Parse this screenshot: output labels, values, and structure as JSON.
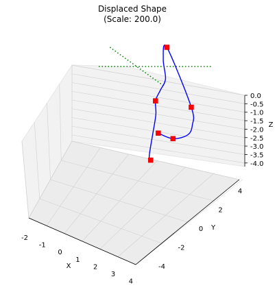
{
  "chart_data": {
    "type": "line",
    "projection": "3d",
    "title": "Displaced Shape",
    "subtitle": "(Scale: 200.0)",
    "xlabel": "X",
    "ylabel": "Y",
    "zlabel": "Z",
    "xlim": [
      -2.2,
      4.2
    ],
    "ylim": [
      -4.2,
      4.2
    ],
    "zlim": [
      -4.2,
      0.1
    ],
    "grid": true,
    "xticks": [
      "-2",
      "-1",
      "0",
      "1",
      "2",
      "3",
      "4"
    ],
    "yticks": [
      "-4",
      "-2",
      "0",
      "2",
      "4"
    ],
    "zticks": [
      "0.0",
      "-0.5",
      "-1.0",
      "-1.5",
      "-2.0",
      "-2.5",
      "-3.0",
      "-3.5",
      "-4.0"
    ],
    "colors": {
      "curve": "#0000ff",
      "nodes": "#ff0000",
      "reference": "#008000",
      "pane": "#f2f2f2",
      "grid": "#d0d0d0"
    },
    "series": [
      {
        "kind": "reference-lines",
        "style": "dotted",
        "segments": [
          {
            "x": [
              0,
              0
            ],
            "y": [
              -4,
              4
            ],
            "z": [
              0,
              0
            ]
          },
          {
            "x": [
              -2,
              4
            ],
            "y": [
              0,
              0
            ],
            "z": [
              0,
              0
            ]
          }
        ]
      },
      {
        "kind": "displaced-curve",
        "x": [
          -0.6,
          -0.5,
          0.2,
          0.8,
          1.1,
          1.7,
          2.4,
          2.6,
          3.0,
          3.9,
          3.5,
          2.8,
          1.6,
          0.4
        ],
        "y": [
          -3.8,
          -3.3,
          -1.8,
          -0.6,
          0.3,
          1.3,
          2.5,
          3.4,
          4.0,
          2.9,
          1.6,
          0.3,
          -0.9,
          -2.1
        ],
        "z": [
          -4.0,
          -3.9,
          -3.2,
          -2.4,
          -1.9,
          -1.6,
          -1.3,
          -0.5,
          0.0,
          -2.9,
          -3.5,
          -3.7,
          -3.6,
          -3.0
        ]
      },
      {
        "kind": "nodes",
        "marker": "square",
        "x": [
          -0.6,
          1.1,
          3.0,
          3.9,
          1.6,
          0.4
        ],
        "y": [
          -3.8,
          0.3,
          4.0,
          2.9,
          -0.9,
          -2.1
        ],
        "z": [
          -4.0,
          -1.9,
          0.0,
          -2.9,
          -3.6,
          -3.0
        ]
      }
    ]
  }
}
